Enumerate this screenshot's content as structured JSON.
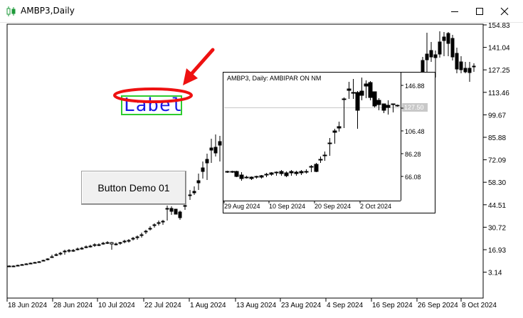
{
  "window": {
    "title": "AMBP3,Daily",
    "icon": "candlestick-chart-icon",
    "controls": [
      "minimize-icon",
      "maximize-icon",
      "close-icon"
    ]
  },
  "main_chart": {
    "price_labels": [
      "154.83",
      "141.04",
      "127.25",
      "113.46",
      "99.67",
      "85.88",
      "72.09",
      "58.30",
      "44.51",
      "30.72",
      "16.93",
      "3.14"
    ],
    "date_labels": [
      "18 Jun 2024",
      "28 Jun 2024",
      "10 Jul 2024",
      "22 Jul 2024",
      "1 Aug 2024",
      "13 Aug 2024",
      "23 Aug 2024",
      "4 Sep 2024",
      "16 Sep 2024",
      "26 Sep 2024",
      "8 Oct 2024"
    ]
  },
  "sub_chart": {
    "header": "AMBP3, Daily:  AMBIPAR        ON        NM",
    "price_labels": [
      "146.88",
      "126.68",
      "106.48",
      "86.28",
      "66.08"
    ],
    "current_price": "127.50",
    "date_labels": [
      "29 Aug 2024",
      "10 Sep 2024",
      "20 Sep 2024",
      "2 Oct 2024"
    ]
  },
  "objects": {
    "button_label": "Button Demo 01",
    "label_text": "Label"
  },
  "colors": {
    "label_text": "#1a1ae6",
    "label_border": "#2ecc2e",
    "annotation": "#ee1111"
  }
}
